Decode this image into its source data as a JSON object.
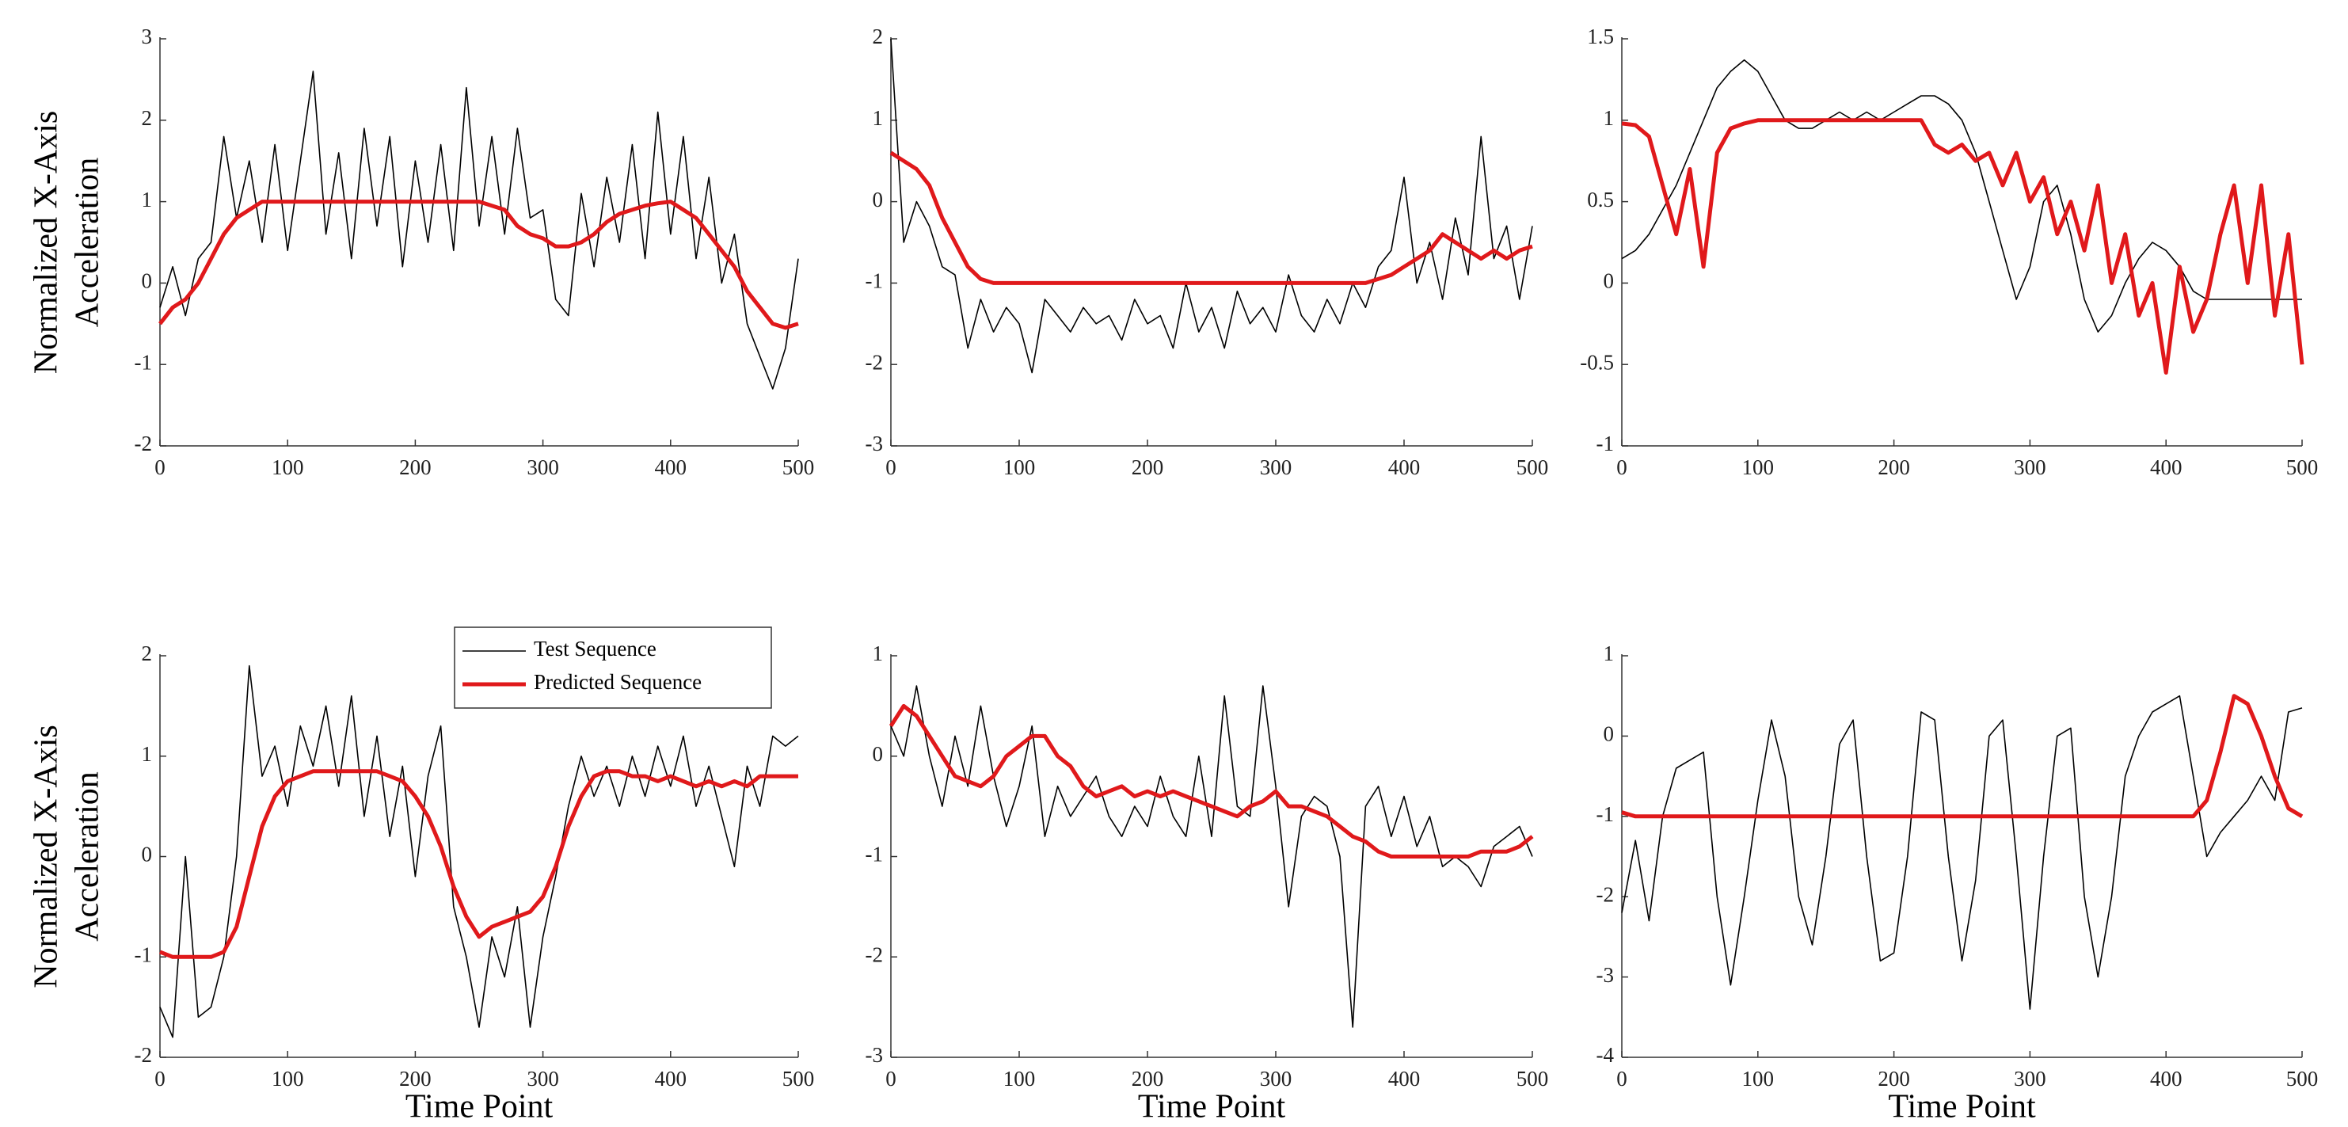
{
  "chart_data": [
    {
      "type": "line",
      "ylabel": [
        "Normalized  X-Axis",
        "Acceleration"
      ],
      "x": [
        0,
        10,
        20,
        30,
        40,
        50,
        60,
        70,
        80,
        90,
        100,
        110,
        120,
        130,
        140,
        150,
        160,
        170,
        180,
        190,
        200,
        210,
        220,
        230,
        240,
        250,
        260,
        270,
        280,
        290,
        300,
        310,
        320,
        330,
        340,
        350,
        360,
        370,
        380,
        390,
        400,
        410,
        420,
        430,
        440,
        450,
        460,
        470,
        480,
        490,
        500
      ],
      "xlim": [
        0,
        500
      ],
      "xticks": [
        0,
        100,
        200,
        300,
        400,
        500
      ],
      "ylim": [
        -2,
        3
      ],
      "yticks": [
        -2,
        -1,
        0,
        1,
        2,
        3
      ],
      "series": [
        {
          "color": "#000000",
          "values": [
            -0.3,
            0.2,
            -0.4,
            0.3,
            0.5,
            1.8,
            0.8,
            1.5,
            0.5,
            1.7,
            0.4,
            1.5,
            2.6,
            0.6,
            1.6,
            0.3,
            1.9,
            0.7,
            1.8,
            0.2,
            1.5,
            0.5,
            1.7,
            0.4,
            2.4,
            0.7,
            1.8,
            0.6,
            1.9,
            0.8,
            0.9,
            -0.2,
            -0.4,
            1.1,
            0.2,
            1.3,
            0.5,
            1.7,
            0.3,
            2.1,
            0.6,
            1.8,
            0.3,
            1.3,
            0.0,
            0.6,
            -0.5,
            -0.9,
            -1.3,
            -0.8,
            0.3
          ]
        },
        {
          "color": "#e0191b",
          "values": [
            -0.5,
            -0.3,
            -0.2,
            0.0,
            0.3,
            0.6,
            0.8,
            0.9,
            1.0,
            1.0,
            1.0,
            1.0,
            1.0,
            1.0,
            1.0,
            1.0,
            1.0,
            1.0,
            1.0,
            1.0,
            1.0,
            1.0,
            1.0,
            1.0,
            1.0,
            1.0,
            0.95,
            0.9,
            0.7,
            0.6,
            0.55,
            0.45,
            0.45,
            0.5,
            0.6,
            0.75,
            0.85,
            0.9,
            0.95,
            0.98,
            1.0,
            0.9,
            0.8,
            0.6,
            0.4,
            0.2,
            -0.1,
            -0.3,
            -0.5,
            -0.55,
            -0.5
          ]
        }
      ]
    },
    {
      "type": "line",
      "x": [
        0,
        10,
        20,
        30,
        40,
        50,
        60,
        70,
        80,
        90,
        100,
        110,
        120,
        130,
        140,
        150,
        160,
        170,
        180,
        190,
        200,
        210,
        220,
        230,
        240,
        250,
        260,
        270,
        280,
        290,
        300,
        310,
        320,
        330,
        340,
        350,
        360,
        370,
        380,
        390,
        400,
        410,
        420,
        430,
        440,
        450,
        460,
        470,
        480,
        490,
        500
      ],
      "xlim": [
        0,
        500
      ],
      "xticks": [
        0,
        100,
        200,
        300,
        400,
        500
      ],
      "ylim": [
        -3,
        2
      ],
      "yticks": [
        -3,
        -2,
        -1,
        0,
        1,
        2
      ],
      "series": [
        {
          "color": "#000000",
          "values": [
            2.0,
            -0.5,
            0.0,
            -0.3,
            -0.8,
            -0.9,
            -1.8,
            -1.2,
            -1.6,
            -1.3,
            -1.5,
            -2.1,
            -1.2,
            -1.4,
            -1.6,
            -1.3,
            -1.5,
            -1.4,
            -1.7,
            -1.2,
            -1.5,
            -1.4,
            -1.8,
            -1.0,
            -1.6,
            -1.3,
            -1.8,
            -1.1,
            -1.5,
            -1.3,
            -1.6,
            -0.9,
            -1.4,
            -1.6,
            -1.2,
            -1.5,
            -1.0,
            -1.3,
            -0.8,
            -0.6,
            0.3,
            -1.0,
            -0.5,
            -1.2,
            -0.2,
            -0.9,
            0.8,
            -0.7,
            -0.3,
            -1.2,
            -0.3
          ]
        },
        {
          "color": "#e0191b",
          "values": [
            0.6,
            0.5,
            0.4,
            0.2,
            -0.2,
            -0.5,
            -0.8,
            -0.95,
            -1.0,
            -1.0,
            -1.0,
            -1.0,
            -1.0,
            -1.0,
            -1.0,
            -1.0,
            -1.0,
            -1.0,
            -1.0,
            -1.0,
            -1.0,
            -1.0,
            -1.0,
            -1.0,
            -1.0,
            -1.0,
            -1.0,
            -1.0,
            -1.0,
            -1.0,
            -1.0,
            -1.0,
            -1.0,
            -1.0,
            -1.0,
            -1.0,
            -1.0,
            -1.0,
            -0.95,
            -0.9,
            -0.8,
            -0.7,
            -0.6,
            -0.4,
            -0.5,
            -0.6,
            -0.7,
            -0.6,
            -0.7,
            -0.6,
            -0.55
          ]
        }
      ]
    },
    {
      "type": "line",
      "x": [
        0,
        10,
        20,
        30,
        40,
        50,
        60,
        70,
        80,
        90,
        100,
        110,
        120,
        130,
        140,
        150,
        160,
        170,
        180,
        190,
        200,
        210,
        220,
        230,
        240,
        250,
        260,
        270,
        280,
        290,
        300,
        310,
        320,
        330,
        340,
        350,
        360,
        370,
        380,
        390,
        400,
        410,
        420,
        430,
        440,
        450,
        460,
        470,
        480,
        490,
        500
      ],
      "xlim": [
        0,
        500
      ],
      "xticks": [
        0,
        100,
        200,
        300,
        400,
        500
      ],
      "ylim": [
        -1,
        1.5
      ],
      "yticks": [
        -1,
        -0.5,
        0,
        0.5,
        1,
        1.5
      ],
      "series": [
        {
          "color": "#000000",
          "values": [
            0.15,
            0.2,
            0.3,
            0.45,
            0.6,
            0.8,
            1.0,
            1.2,
            1.3,
            1.37,
            1.3,
            1.15,
            1.0,
            0.95,
            0.95,
            1.0,
            1.05,
            1.0,
            1.05,
            1.0,
            1.05,
            1.1,
            1.15,
            1.15,
            1.1,
            1.0,
            0.8,
            0.5,
            0.2,
            -0.1,
            0.1,
            0.5,
            0.6,
            0.3,
            -0.1,
            -0.3,
            -0.2,
            0.0,
            0.15,
            0.25,
            0.2,
            0.1,
            -0.05,
            -0.1,
            -0.1,
            -0.1,
            -0.1,
            -0.1,
            -0.1,
            -0.1,
            -0.1
          ]
        },
        {
          "color": "#e0191b",
          "values": [
            0.98,
            0.97,
            0.9,
            0.6,
            0.3,
            0.7,
            0.1,
            0.8,
            0.95,
            0.98,
            1.0,
            1.0,
            1.0,
            1.0,
            1.0,
            1.0,
            1.0,
            1.0,
            1.0,
            1.0,
            1.0,
            1.0,
            1.0,
            0.85,
            0.8,
            0.85,
            0.75,
            0.8,
            0.6,
            0.8,
            0.5,
            0.65,
            0.3,
            0.5,
            0.2,
            0.6,
            0.0,
            0.3,
            -0.2,
            0.0,
            -0.55,
            0.1,
            -0.3,
            -0.1,
            0.3,
            0.6,
            0.0,
            0.6,
            -0.2,
            0.3,
            -0.5
          ]
        }
      ]
    },
    {
      "type": "line",
      "ylabel": [
        "Normalized  X-Axis",
        "Acceleration"
      ],
      "xlabel": "Time Point",
      "legend": "upper right",
      "x": [
        0,
        10,
        20,
        30,
        40,
        50,
        60,
        70,
        80,
        90,
        100,
        110,
        120,
        130,
        140,
        150,
        160,
        170,
        180,
        190,
        200,
        210,
        220,
        230,
        240,
        250,
        260,
        270,
        280,
        290,
        300,
        310,
        320,
        330,
        340,
        350,
        360,
        370,
        380,
        390,
        400,
        410,
        420,
        430,
        440,
        450,
        460,
        470,
        480,
        490,
        500
      ],
      "xlim": [
        0,
        500
      ],
      "xticks": [
        0,
        100,
        200,
        300,
        400,
        500
      ],
      "ylim": [
        -2,
        2
      ],
      "yticks": [
        -2,
        -1,
        0,
        1,
        2
      ],
      "series": [
        {
          "name": "Test Sequence",
          "color": "#000000",
          "values": [
            -1.5,
            -1.8,
            0.0,
            -1.6,
            -1.5,
            -1.0,
            0.0,
            1.9,
            0.8,
            1.1,
            0.5,
            1.3,
            0.9,
            1.5,
            0.7,
            1.6,
            0.4,
            1.2,
            0.2,
            0.9,
            -0.2,
            0.8,
            1.3,
            -0.5,
            -1.0,
            -1.7,
            -0.8,
            -1.2,
            -0.5,
            -1.7,
            -0.8,
            -0.2,
            0.5,
            1.0,
            0.6,
            0.9,
            0.5,
            1.0,
            0.6,
            1.1,
            0.7,
            1.2,
            0.5,
            0.9,
            0.4,
            -0.1,
            0.9,
            0.5,
            1.2,
            1.1,
            1.2
          ]
        },
        {
          "name": "Predicted Sequence",
          "color": "#e0191b",
          "values": [
            -0.95,
            -1.0,
            -1.0,
            -1.0,
            -1.0,
            -0.95,
            -0.7,
            -0.2,
            0.3,
            0.6,
            0.75,
            0.8,
            0.85,
            0.85,
            0.85,
            0.85,
            0.85,
            0.85,
            0.8,
            0.75,
            0.6,
            0.4,
            0.1,
            -0.3,
            -0.6,
            -0.8,
            -0.7,
            -0.65,
            -0.6,
            -0.55,
            -0.4,
            -0.1,
            0.3,
            0.6,
            0.8,
            0.85,
            0.85,
            0.8,
            0.8,
            0.75,
            0.8,
            0.75,
            0.7,
            0.75,
            0.7,
            0.75,
            0.7,
            0.8,
            0.8,
            0.8,
            0.8
          ]
        }
      ]
    },
    {
      "type": "line",
      "xlabel": "Time Point",
      "x": [
        0,
        10,
        20,
        30,
        40,
        50,
        60,
        70,
        80,
        90,
        100,
        110,
        120,
        130,
        140,
        150,
        160,
        170,
        180,
        190,
        200,
        210,
        220,
        230,
        240,
        250,
        260,
        270,
        280,
        290,
        300,
        310,
        320,
        330,
        340,
        350,
        360,
        370,
        380,
        390,
        400,
        410,
        420,
        430,
        440,
        450,
        460,
        470,
        480,
        490,
        500
      ],
      "xlim": [
        0,
        500
      ],
      "xticks": [
        0,
        100,
        200,
        300,
        400,
        500
      ],
      "ylim": [
        -3,
        1
      ],
      "yticks": [
        -3,
        -2,
        -1,
        0,
        1
      ],
      "series": [
        {
          "color": "#000000",
          "values": [
            0.3,
            0.0,
            0.7,
            0.0,
            -0.5,
            0.2,
            -0.3,
            0.5,
            -0.2,
            -0.7,
            -0.3,
            0.3,
            -0.8,
            -0.3,
            -0.6,
            -0.4,
            -0.2,
            -0.6,
            -0.8,
            -0.5,
            -0.7,
            -0.2,
            -0.6,
            -0.8,
            0.0,
            -0.8,
            0.6,
            -0.5,
            -0.6,
            0.7,
            -0.3,
            -1.5,
            -0.6,
            -0.4,
            -0.5,
            -1.0,
            -2.7,
            -0.5,
            -0.3,
            -0.8,
            -0.4,
            -0.9,
            -0.6,
            -1.1,
            -1.0,
            -1.1,
            -1.3,
            -0.9,
            -0.8,
            -0.7,
            -1.0
          ]
        },
        {
          "color": "#e0191b",
          "values": [
            0.3,
            0.5,
            0.4,
            0.2,
            0.0,
            -0.2,
            -0.25,
            -0.3,
            -0.2,
            0.0,
            0.1,
            0.2,
            0.2,
            0.0,
            -0.1,
            -0.3,
            -0.4,
            -0.35,
            -0.3,
            -0.4,
            -0.35,
            -0.4,
            -0.35,
            -0.4,
            -0.45,
            -0.5,
            -0.55,
            -0.6,
            -0.5,
            -0.45,
            -0.35,
            -0.5,
            -0.5,
            -0.55,
            -0.6,
            -0.7,
            -0.8,
            -0.85,
            -0.95,
            -1.0,
            -1.0,
            -1.0,
            -1.0,
            -1.0,
            -1.0,
            -1.0,
            -0.95,
            -0.95,
            -0.95,
            -0.9,
            -0.8
          ]
        }
      ]
    },
    {
      "type": "line",
      "xlabel": "Time Point",
      "x": [
        0,
        10,
        20,
        30,
        40,
        50,
        60,
        70,
        80,
        90,
        100,
        110,
        120,
        130,
        140,
        150,
        160,
        170,
        180,
        190,
        200,
        210,
        220,
        230,
        240,
        250,
        260,
        270,
        280,
        290,
        300,
        310,
        320,
        330,
        340,
        350,
        360,
        370,
        380,
        390,
        400,
        410,
        420,
        430,
        440,
        450,
        460,
        470,
        480,
        490,
        500
      ],
      "xlim": [
        0,
        500
      ],
      "xticks": [
        0,
        100,
        200,
        300,
        400,
        500
      ],
      "ylim": [
        -4,
        1
      ],
      "yticks": [
        -4,
        -3,
        -2,
        -1,
        0,
        1
      ],
      "series": [
        {
          "color": "#000000",
          "values": [
            -2.2,
            -1.3,
            -2.3,
            -1.0,
            -0.4,
            -0.3,
            -0.2,
            -2.0,
            -3.1,
            -2.0,
            -0.8,
            0.2,
            -0.5,
            -2.0,
            -2.6,
            -1.5,
            -0.1,
            0.2,
            -1.5,
            -2.8,
            -2.7,
            -1.5,
            0.3,
            0.2,
            -1.5,
            -2.8,
            -1.8,
            0.0,
            0.2,
            -1.5,
            -3.4,
            -1.5,
            0.0,
            0.1,
            -2.0,
            -3.0,
            -2.0,
            -0.5,
            0.0,
            0.3,
            0.4,
            0.5,
            -0.5,
            -1.5,
            -1.2,
            -1.0,
            -0.8,
            -0.5,
            -0.8,
            0.3,
            0.35
          ]
        },
        {
          "color": "#e0191b",
          "values": [
            -0.95,
            -1.0,
            -1.0,
            -1.0,
            -1.0,
            -1.0,
            -1.0,
            -1.0,
            -1.0,
            -1.0,
            -1.0,
            -1.0,
            -1.0,
            -1.0,
            -1.0,
            -1.0,
            -1.0,
            -1.0,
            -1.0,
            -1.0,
            -1.0,
            -1.0,
            -1.0,
            -1.0,
            -1.0,
            -1.0,
            -1.0,
            -1.0,
            -1.0,
            -1.0,
            -1.0,
            -1.0,
            -1.0,
            -1.0,
            -1.0,
            -1.0,
            -1.0,
            -1.0,
            -1.0,
            -1.0,
            -1.0,
            -1.0,
            -1.0,
            -0.8,
            -0.2,
            0.5,
            0.4,
            0.0,
            -0.5,
            -0.9,
            -1.0
          ]
        }
      ]
    }
  ]
}
